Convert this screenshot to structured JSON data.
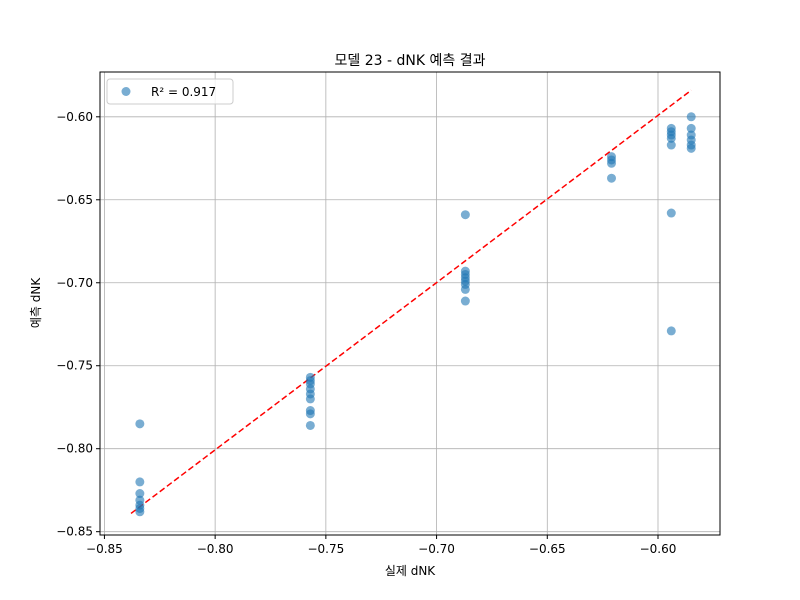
{
  "chart_data": {
    "type": "scatter",
    "title": "모델 23 - dNK 예측 결과",
    "xlabel": "실제 dNK",
    "ylabel": "예측 dNK",
    "xlim": [
      -0.852,
      -0.572
    ],
    "ylim": [
      -0.852,
      -0.573
    ],
    "xticks": [
      -0.85,
      -0.8,
      -0.75,
      -0.7,
      -0.65,
      -0.6
    ],
    "xtick_labels": [
      "−0.85",
      "−0.80",
      "−0.75",
      "−0.70",
      "−0.65",
      "−0.60"
    ],
    "yticks": [
      -0.85,
      -0.8,
      -0.75,
      -0.7,
      -0.65,
      -0.6
    ],
    "ytick_labels": [
      "−0.85",
      "−0.80",
      "−0.75",
      "−0.70",
      "−0.65",
      "−0.60"
    ],
    "grid": true,
    "legend": {
      "position": "top-left",
      "entries": [
        "R² = 0.917"
      ]
    },
    "colors": {
      "points": "#1f77b4",
      "fit_line": "#ff0000",
      "grid": "#b0b0b0"
    },
    "series": [
      {
        "name": "R² = 0.917",
        "points": [
          {
            "x": -0.834,
            "y": -0.785
          },
          {
            "x": -0.834,
            "y": -0.82
          },
          {
            "x": -0.834,
            "y": -0.827
          },
          {
            "x": -0.834,
            "y": -0.831
          },
          {
            "x": -0.834,
            "y": -0.834
          },
          {
            "x": -0.834,
            "y": -0.836
          },
          {
            "x": -0.834,
            "y": -0.838
          },
          {
            "x": -0.757,
            "y": -0.757
          },
          {
            "x": -0.757,
            "y": -0.759
          },
          {
            "x": -0.757,
            "y": -0.761
          },
          {
            "x": -0.757,
            "y": -0.764
          },
          {
            "x": -0.757,
            "y": -0.767
          },
          {
            "x": -0.757,
            "y": -0.77
          },
          {
            "x": -0.757,
            "y": -0.777
          },
          {
            "x": -0.757,
            "y": -0.779
          },
          {
            "x": -0.757,
            "y": -0.786
          },
          {
            "x": -0.687,
            "y": -0.659
          },
          {
            "x": -0.687,
            "y": -0.693
          },
          {
            "x": -0.687,
            "y": -0.695
          },
          {
            "x": -0.687,
            "y": -0.697
          },
          {
            "x": -0.687,
            "y": -0.699
          },
          {
            "x": -0.687,
            "y": -0.701
          },
          {
            "x": -0.687,
            "y": -0.704
          },
          {
            "x": -0.687,
            "y": -0.711
          },
          {
            "x": -0.621,
            "y": -0.624
          },
          {
            "x": -0.621,
            "y": -0.626
          },
          {
            "x": -0.621,
            "y": -0.628
          },
          {
            "x": -0.621,
            "y": -0.637
          },
          {
            "x": -0.594,
            "y": -0.607
          },
          {
            "x": -0.594,
            "y": -0.609
          },
          {
            "x": -0.594,
            "y": -0.611
          },
          {
            "x": -0.594,
            "y": -0.613
          },
          {
            "x": -0.594,
            "y": -0.617
          },
          {
            "x": -0.594,
            "y": -0.658
          },
          {
            "x": -0.594,
            "y": -0.729
          },
          {
            "x": -0.585,
            "y": -0.6
          },
          {
            "x": -0.585,
            "y": -0.607
          },
          {
            "x": -0.585,
            "y": -0.611
          },
          {
            "x": -0.585,
            "y": -0.614
          },
          {
            "x": -0.585,
            "y": -0.617
          },
          {
            "x": -0.585,
            "y": -0.619
          }
        ]
      }
    ],
    "fit_line": {
      "style": "dashed",
      "x": [
        -0.838,
        -0.585
      ],
      "y": [
        -0.839,
        -0.584
      ]
    }
  }
}
